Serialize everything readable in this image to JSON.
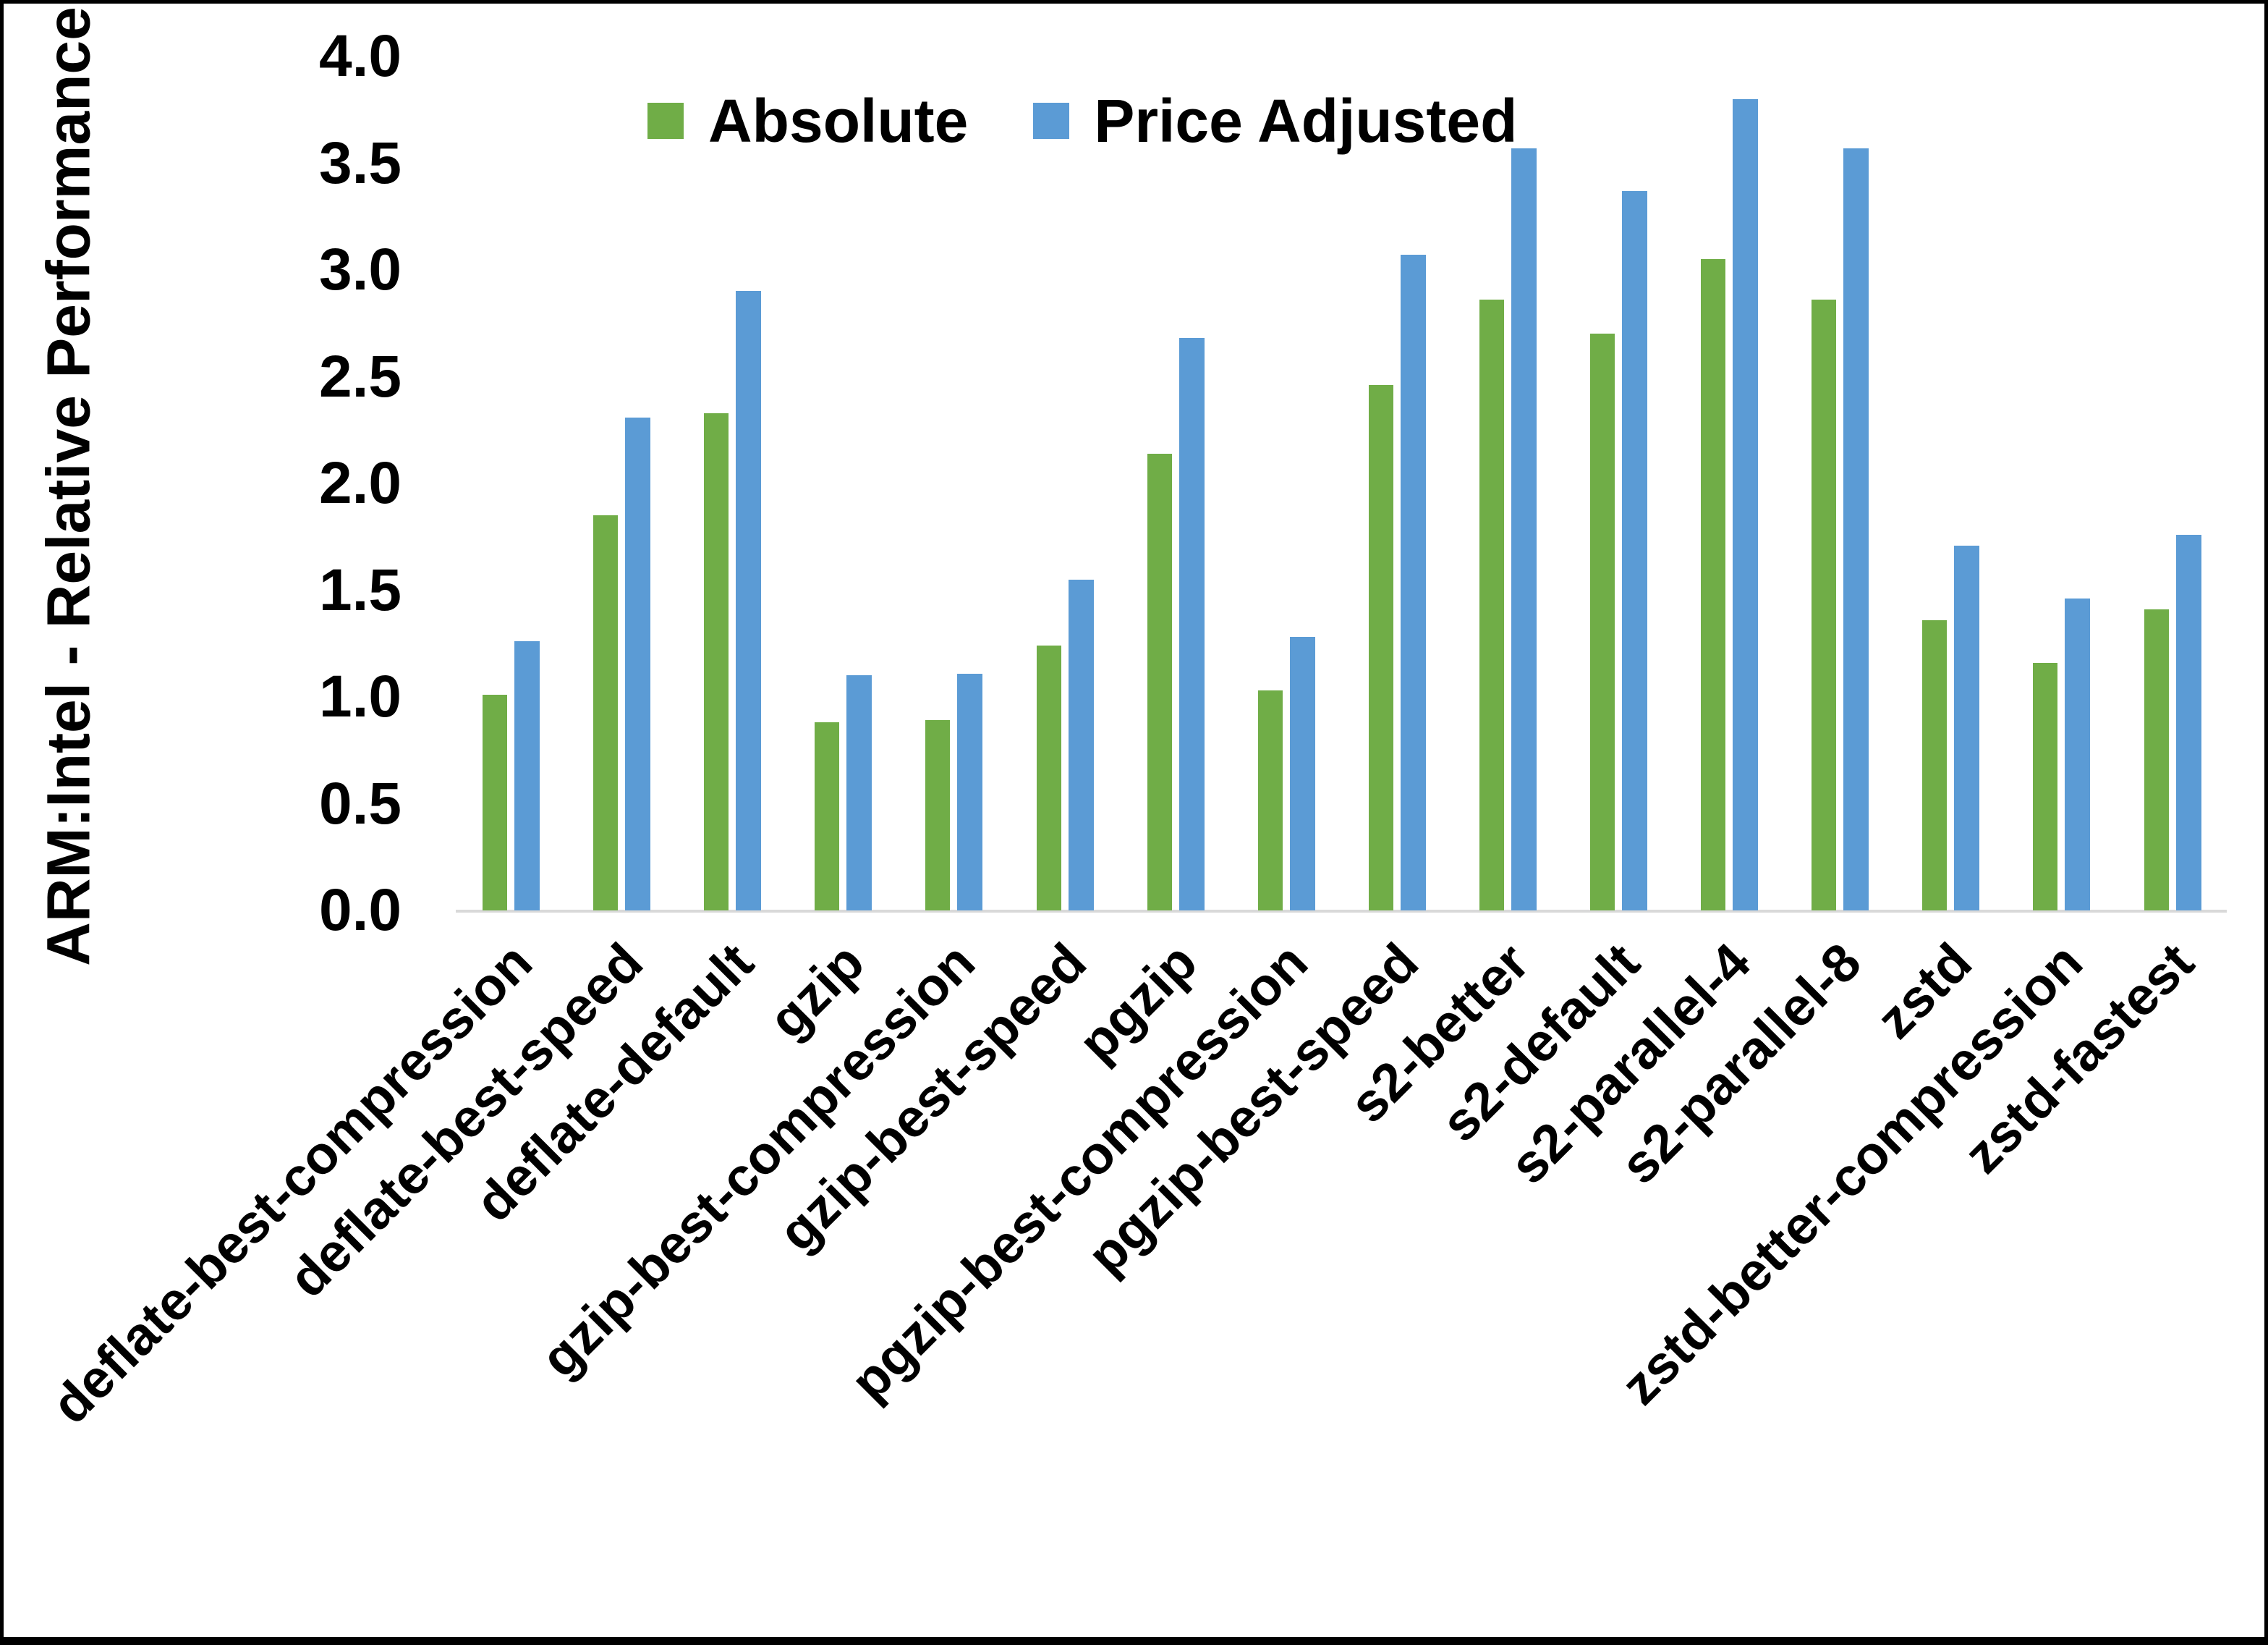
{
  "chart_data": {
    "type": "bar",
    "title": "",
    "xlabel": "",
    "ylabel": "ARM:Intel - Relative Performance",
    "ylim": [
      0.0,
      4.0
    ],
    "ytick_labels": [
      "4.0",
      "3.5",
      "3.0",
      "2.5",
      "2.0",
      "1.5",
      "1.0",
      "0.5",
      "0.0"
    ],
    "grid": false,
    "legend_position": "top-center",
    "categories": [
      "deflate-best-compression",
      "deflate-best-speed",
      "deflate-default",
      "gzip",
      "gzip-best-compression",
      "gzip-best-speed",
      "pgzip",
      "pgzip-best-compression",
      "pgzip-best-speed",
      "s2-better",
      "s2-default",
      "s2-parallel-4",
      "s2-parallel-8",
      "zstd",
      "zstd-better-compression",
      "zstd-fastest"
    ],
    "series": [
      {
        "name": "Absolute",
        "color": "#70AD47",
        "values": [
          1.01,
          1.85,
          2.33,
          0.88,
          0.89,
          1.24,
          2.14,
          1.03,
          2.46,
          2.86,
          2.7,
          3.05,
          2.86,
          1.36,
          1.16,
          1.41
        ]
      },
      {
        "name": "Price Adjusted",
        "color": "#5B9BD5",
        "values": [
          1.26,
          2.31,
          2.9,
          1.1,
          1.11,
          1.55,
          2.68,
          1.28,
          3.07,
          3.57,
          3.37,
          3.8,
          3.57,
          1.71,
          1.46,
          1.76
        ]
      }
    ]
  },
  "colors": {
    "background": "#FFFFFF",
    "axis_line": "#D9D9D9",
    "text": "#000000",
    "border": "#000000"
  }
}
